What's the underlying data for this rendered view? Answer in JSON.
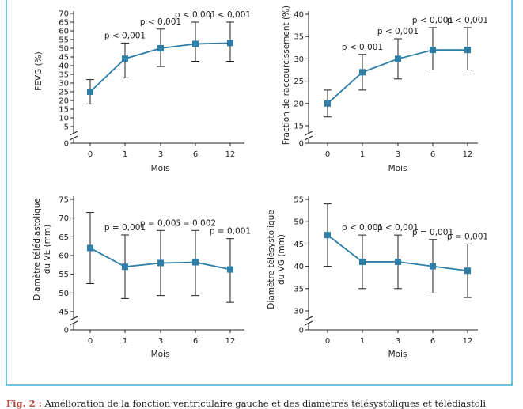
{
  "colors": {
    "series": "#2d7ea8",
    "frame": "#6ec3df",
    "axis": "#222222",
    "figure_label": "#b7463c"
  },
  "caption": {
    "figure_label": "Fig. 2 :",
    "text": " Amélioration de la fonction ventriculaire gauche et des diamètres télésystoliques et télédiastoli"
  },
  "chart_data": [
    {
      "type": "line",
      "ylabel": "FEVG (%)",
      "xlabel": "Mois",
      "x": [
        "0",
        "1",
        "3",
        "6",
        "12"
      ],
      "yticks": [
        0,
        5,
        10,
        15,
        20,
        25,
        30,
        35,
        40,
        45,
        50,
        55,
        60,
        65,
        70
      ],
      "ytick_labels": [
        "0",
        "5",
        "10",
        "15",
        "20",
        "25",
        "30",
        "35",
        "40",
        "45",
        "50",
        "55",
        "60",
        "65",
        "70"
      ],
      "ylim": [
        0,
        70
      ],
      "axis_break": true,
      "series": [
        {
          "values": [
            25,
            44,
            50,
            52.5,
            53
          ],
          "err_low": [
            18,
            33,
            39.5,
            42.5,
            42.5
          ],
          "err_high": [
            32,
            53,
            61,
            65,
            65
          ]
        }
      ],
      "annotations": [
        "",
        "p < 0,001",
        "p < 0,001",
        "p < 0,001",
        "p < 0,001"
      ]
    },
    {
      "type": "line",
      "ylabel": "Fraction de raccourcissement (%)",
      "xlabel": "Mois",
      "x": [
        "0",
        "1",
        "3",
        "6",
        "12"
      ],
      "yticks": [
        0,
        15,
        20,
        25,
        30,
        35,
        40
      ],
      "ytick_labels": [
        "0",
        "15",
        "20",
        "25",
        "30",
        "35",
        "40"
      ],
      "ylim": [
        0,
        40
      ],
      "axis_break": true,
      "series": [
        {
          "values": [
            20,
            27,
            30,
            32,
            32
          ],
          "err_low": [
            17,
            23,
            25.5,
            27.5,
            27.5
          ],
          "err_high": [
            23,
            31,
            34.5,
            37,
            37
          ]
        }
      ],
      "annotations": [
        "",
        "p < 0,001",
        "p < 0,001",
        "p < 0,001",
        "p < 0,001"
      ]
    },
    {
      "type": "line",
      "ylabel": "Diamètre télédiastolique du VE (mm)",
      "xlabel": "Mois",
      "x": [
        "0",
        "1",
        "3",
        "6",
        "12"
      ],
      "yticks": [
        0,
        45,
        50,
        55,
        60,
        65,
        70,
        75
      ],
      "ytick_labels": [
        "0",
        "45",
        "50",
        "55",
        "60",
        "65",
        "70",
        "75"
      ],
      "ylim": [
        0,
        75
      ],
      "axis_break": true,
      "series": [
        {
          "values": [
            62,
            57,
            58,
            58.2,
            56.3
          ],
          "err_low": [
            52.5,
            48.5,
            49.3,
            49.3,
            47.5
          ],
          "err_high": [
            71.5,
            65.5,
            66.7,
            66.7,
            64.5
          ]
        }
      ],
      "annotations": [
        "",
        "p = 0,001",
        "p = 0,003",
        "p = 0,002",
        "p = 0,001"
      ]
    },
    {
      "type": "line",
      "ylabel": "Diamètre télésystolique du VG (mm)",
      "xlabel": "Mois",
      "x": [
        "0",
        "1",
        "3",
        "6",
        "12"
      ],
      "yticks": [
        0,
        30,
        35,
        40,
        45,
        50,
        55
      ],
      "ytick_labels": [
        "0",
        "30",
        "35",
        "40",
        "45",
        "50",
        "55"
      ],
      "ylim": [
        0,
        55
      ],
      "axis_break": true,
      "series": [
        {
          "values": [
            47,
            41,
            41,
            40,
            39
          ],
          "err_low": [
            40,
            35,
            35,
            34,
            33
          ],
          "err_high": [
            54,
            47,
            47,
            46,
            45
          ]
        }
      ],
      "annotations": [
        "",
        "p < 0,001",
        "p < 0,001",
        "p = 0,001",
        "p = 0,001"
      ]
    }
  ]
}
